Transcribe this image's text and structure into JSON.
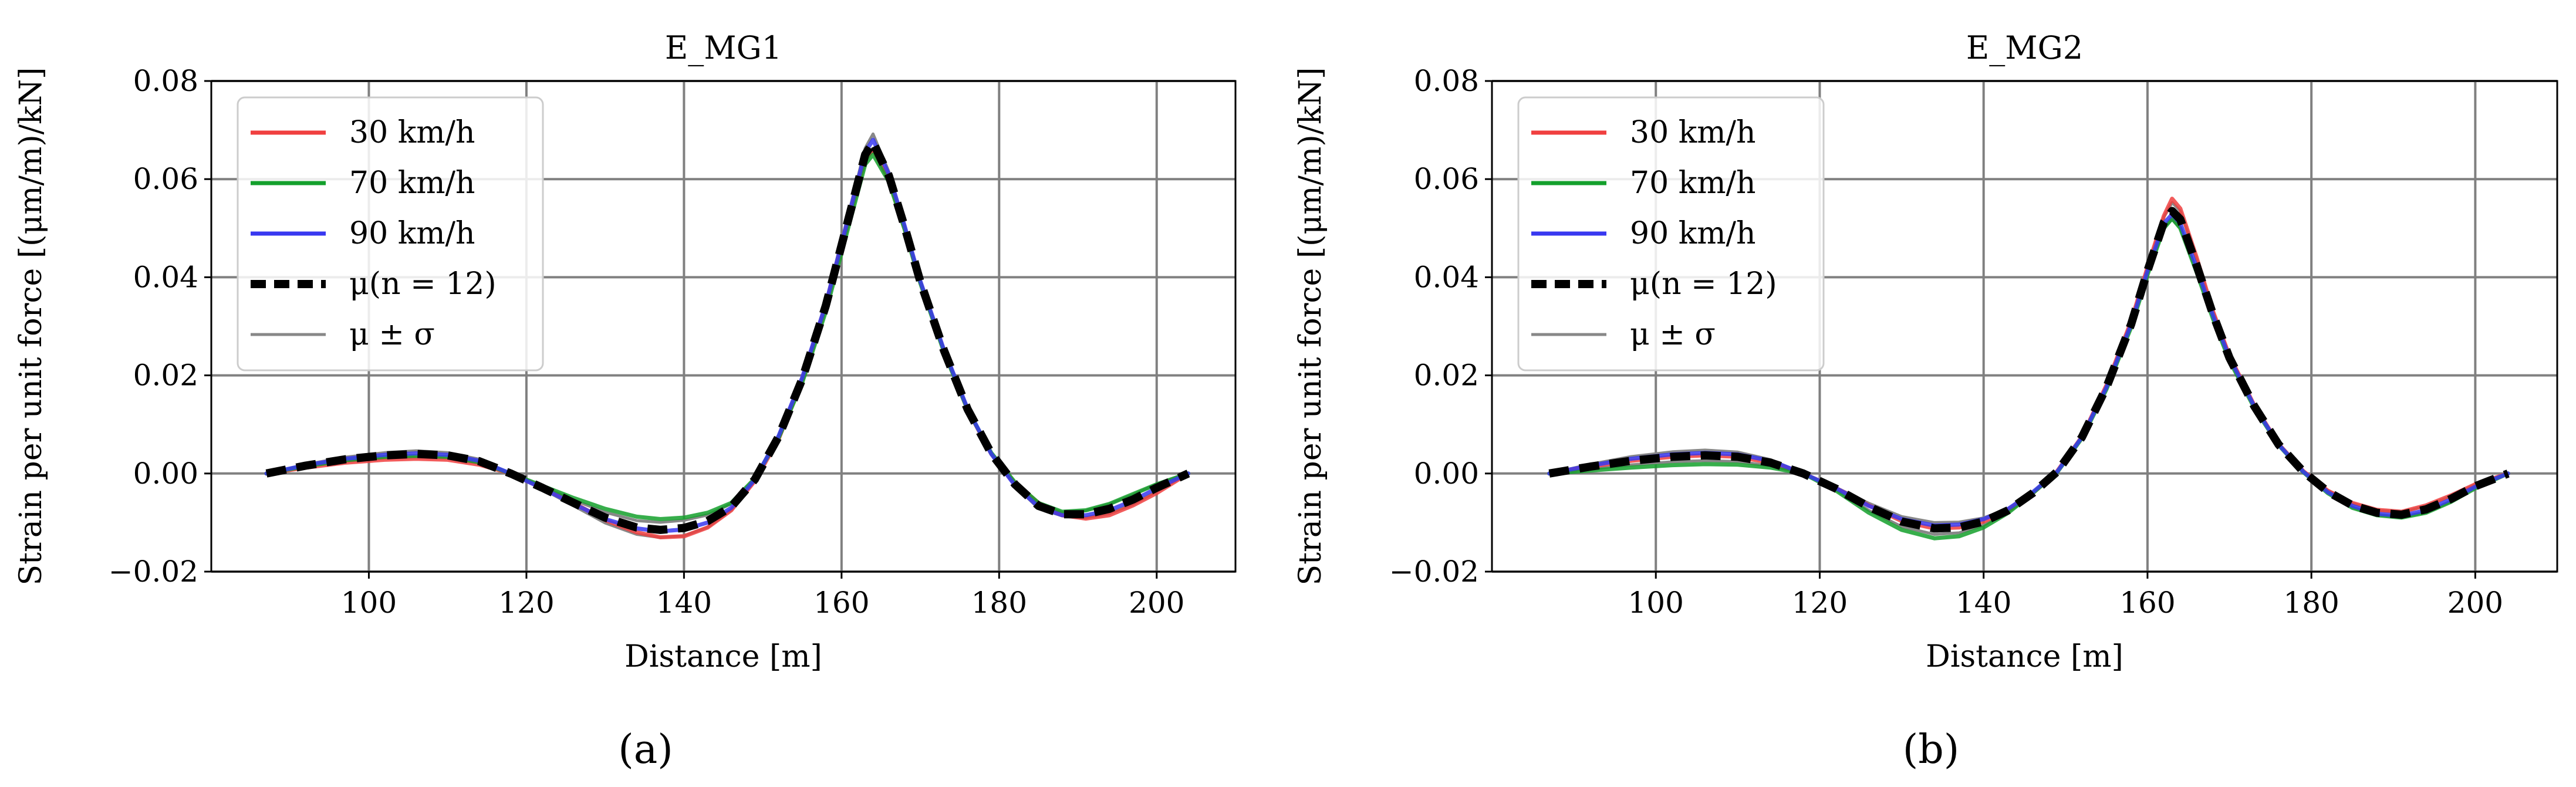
{
  "figure": {
    "panel_labels": [
      "(a)",
      "(b)"
    ]
  },
  "chart_data": [
    {
      "type": "line",
      "title": "E_MG1",
      "xlabel": "Distance [m]",
      "ylabel": "Strain per unit force [(μm/m)/kN]",
      "xlim": [
        80,
        210
      ],
      "ylim": [
        -0.02,
        0.08
      ],
      "xticks": [
        100,
        120,
        140,
        160,
        180,
        200
      ],
      "yticks": [
        -0.02,
        0.0,
        0.02,
        0.04,
        0.06,
        0.08
      ],
      "xtick_labels": [
        "100",
        "120",
        "140",
        "160",
        "180",
        "200"
      ],
      "ytick_labels": [
        "−0.02",
        "0.00",
        "0.02",
        "0.04",
        "0.06",
        "0.08"
      ],
      "grid": true,
      "legend_position": "top-left",
      "legend": [
        "30 km/h",
        "70 km/h",
        "90 km/h",
        "μ(n = 12)",
        "μ ± σ"
      ],
      "x": [
        87,
        92,
        97,
        102,
        106,
        110,
        114,
        118,
        122,
        126,
        130,
        134,
        137,
        140,
        143,
        146,
        149,
        152,
        155,
        158,
        160,
        162,
        163,
        164,
        166,
        168,
        170,
        173,
        176,
        179,
        182,
        185,
        188,
        191,
        194,
        197,
        200,
        204
      ],
      "series": [
        {
          "name": "30 km/h",
          "color": "#f04040",
          "dash": "solid",
          "values": [
            0.0,
            0.0012,
            0.0022,
            0.0028,
            0.003,
            0.0028,
            0.0018,
            0.0,
            -0.0028,
            -0.006,
            -0.0095,
            -0.012,
            -0.013,
            -0.0128,
            -0.011,
            -0.0075,
            -0.0015,
            0.007,
            0.019,
            0.034,
            0.046,
            0.058,
            0.064,
            0.066,
            0.06,
            0.05,
            0.039,
            0.025,
            0.013,
            0.004,
            -0.002,
            -0.006,
            -0.0085,
            -0.0092,
            -0.0085,
            -0.0065,
            -0.004,
            0.0
          ]
        },
        {
          "name": "70 km/h",
          "color": "#14a02c",
          "dash": "solid",
          "values": [
            0.0,
            0.0015,
            0.0027,
            0.0034,
            0.0036,
            0.0034,
            0.0023,
            0.0,
            -0.0025,
            -0.005,
            -0.0072,
            -0.0088,
            -0.0093,
            -0.009,
            -0.008,
            -0.006,
            -0.001,
            0.0072,
            0.0185,
            0.033,
            0.045,
            0.057,
            0.063,
            0.065,
            0.0595,
            0.0498,
            0.0388,
            0.0248,
            0.013,
            0.0042,
            -0.0018,
            -0.006,
            -0.0078,
            -0.0075,
            -0.0062,
            -0.0042,
            -0.0022,
            0.0
          ]
        },
        {
          "name": "90 km/h",
          "color": "#3838f0",
          "dash": "solid",
          "values": [
            0.0,
            0.0017,
            0.003,
            0.0038,
            0.0041,
            0.0038,
            0.0026,
            0.0,
            -0.003,
            -0.0062,
            -0.0093,
            -0.0112,
            -0.0118,
            -0.0114,
            -0.01,
            -0.007,
            -0.0012,
            0.0076,
            0.0195,
            0.0345,
            0.0468,
            0.0592,
            0.0655,
            0.068,
            0.061,
            0.0505,
            0.0392,
            0.0252,
            0.0132,
            0.004,
            -0.0024,
            -0.0068,
            -0.0085,
            -0.0085,
            -0.0075,
            -0.0055,
            -0.003,
            0.0
          ]
        },
        {
          "name": "μ(n = 12)",
          "color": "#000000",
          "dash": "dashed",
          "values": [
            0.0,
            0.0016,
            0.0029,
            0.0037,
            0.004,
            0.0037,
            0.0025,
            0.0,
            -0.0029,
            -0.006,
            -0.009,
            -0.011,
            -0.0115,
            -0.0111,
            -0.0097,
            -0.0068,
            -0.0012,
            0.0075,
            0.0192,
            0.0342,
            0.0465,
            0.0588,
            0.065,
            0.0675,
            0.0607,
            0.0503,
            0.0391,
            0.0251,
            0.0131,
            0.0041,
            -0.0022,
            -0.0066,
            -0.0083,
            -0.0083,
            -0.0072,
            -0.0053,
            -0.0029,
            0.0
          ]
        }
      ]
    },
    {
      "type": "line",
      "title": "E_MG2",
      "xlabel": "Distance [m]",
      "ylabel": "Strain per unit force [(μm/m)/kN]",
      "xlim": [
        80,
        210
      ],
      "ylim": [
        -0.02,
        0.08
      ],
      "xticks": [
        100,
        120,
        140,
        160,
        180,
        200
      ],
      "yticks": [
        -0.02,
        0.0,
        0.02,
        0.04,
        0.06,
        0.08
      ],
      "xtick_labels": [
        "100",
        "120",
        "140",
        "160",
        "180",
        "200"
      ],
      "ytick_labels": [
        "−0.02",
        "0.00",
        "0.02",
        "0.04",
        "0.06",
        "0.08"
      ],
      "grid": true,
      "legend_position": "top-left",
      "legend": [
        "30 km/h",
        "70 km/h",
        "90 km/h",
        "μ(n = 12)",
        "μ ± σ"
      ],
      "x": [
        87,
        92,
        97,
        102,
        106,
        110,
        114,
        118,
        122,
        126,
        130,
        134,
        137,
        140,
        143,
        146,
        149,
        152,
        155,
        158,
        160,
        162,
        163,
        164,
        166,
        168,
        170,
        173,
        176,
        179,
        182,
        185,
        188,
        191,
        194,
        197,
        200,
        204
      ],
      "series": [
        {
          "name": "30 km/h",
          "color": "#f04040",
          "dash": "solid",
          "values": [
            0.0,
            0.0014,
            0.0026,
            0.0034,
            0.0037,
            0.0034,
            0.0022,
            0.0,
            -0.003,
            -0.0065,
            -0.0097,
            -0.0112,
            -0.011,
            -0.0098,
            -0.0075,
            -0.004,
            0.0005,
            0.0075,
            0.018,
            0.031,
            0.042,
            0.0525,
            0.056,
            0.054,
            0.044,
            0.033,
            0.024,
            0.014,
            0.006,
            0.0005,
            -0.0035,
            -0.006,
            -0.0074,
            -0.0078,
            -0.0065,
            -0.0045,
            -0.0022,
            0.0
          ]
        },
        {
          "name": "70 km/h",
          "color": "#14a02c",
          "dash": "solid",
          "values": [
            0.0,
            0.0006,
            0.0012,
            0.0017,
            0.0019,
            0.0018,
            0.0012,
            0.0,
            -0.0035,
            -0.008,
            -0.0115,
            -0.0132,
            -0.0128,
            -0.011,
            -0.008,
            -0.004,
            0.0003,
            0.0072,
            0.0172,
            0.0298,
            0.0405,
            0.05,
            0.052,
            0.05,
            0.041,
            0.0315,
            0.023,
            0.0135,
            0.0058,
            0.0003,
            -0.004,
            -0.007,
            -0.0085,
            -0.009,
            -0.008,
            -0.0058,
            -0.003,
            0.0
          ]
        },
        {
          "name": "90 km/h",
          "color": "#3838f0",
          "dash": "solid",
          "values": [
            0.0,
            0.0016,
            0.003,
            0.0039,
            0.0042,
            0.0039,
            0.0026,
            0.0,
            -0.003,
            -0.0066,
            -0.0093,
            -0.0106,
            -0.0104,
            -0.0093,
            -0.0072,
            -0.0038,
            0.0004,
            0.0074,
            0.0176,
            0.0304,
            0.0413,
            0.051,
            0.0528,
            0.051,
            0.042,
            0.0322,
            0.0236,
            0.0138,
            0.0059,
            0.0004,
            -0.0038,
            -0.0066,
            -0.0082,
            -0.0086,
            -0.0075,
            -0.0053,
            -0.0027,
            0.0
          ]
        },
        {
          "name": "μ(n = 12)",
          "color": "#000000",
          "dash": "dashed",
          "values": [
            0.0,
            0.0014,
            0.0026,
            0.0034,
            0.0037,
            0.0034,
            0.0022,
            0.0,
            -0.0031,
            -0.0068,
            -0.0098,
            -0.0112,
            -0.011,
            -0.0098,
            -0.0075,
            -0.004,
            0.0004,
            0.0074,
            0.0176,
            0.0304,
            0.0413,
            0.0512,
            0.0535,
            0.0518,
            0.0424,
            0.0324,
            0.0236,
            0.0138,
            0.0059,
            0.0004,
            -0.0037,
            -0.0065,
            -0.008,
            -0.0084,
            -0.0073,
            -0.0052,
            -0.0026,
            0.0
          ]
        }
      ]
    }
  ]
}
